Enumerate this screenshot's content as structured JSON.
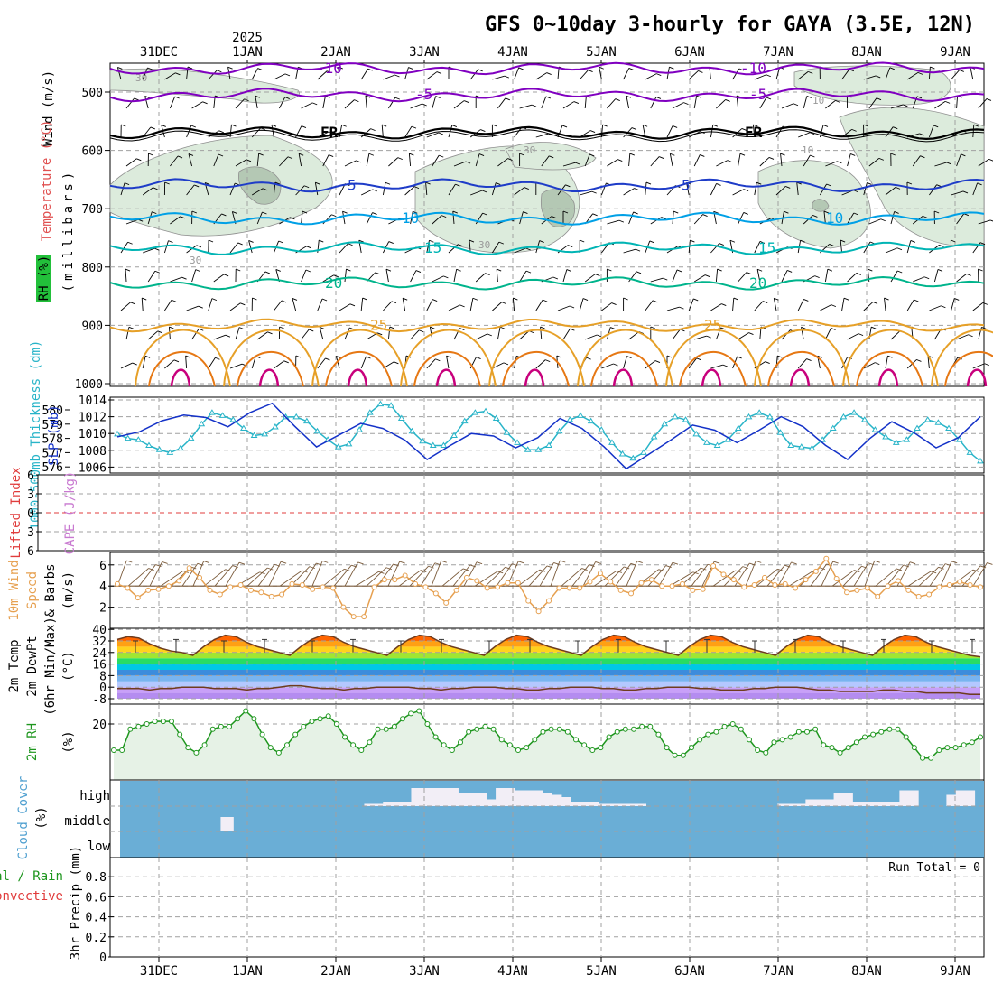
{
  "title": "GFS 0~10day 3-hourly for GAYA (3.5E, 12N)",
  "year_label": "2025",
  "dates": [
    "31DEC",
    "1JAN",
    "2JAN",
    "3JAN",
    "4JAN",
    "5JAN",
    "6JAN",
    "7JAN",
    "8JAN",
    "9JAN"
  ],
  "colors": {
    "grid": "#a0a0a0",
    "rh_fill_light": "#dcebdc",
    "rh_fill_dark": "#b4c8b4",
    "isotherm_purple": "#8000c0",
    "isotherm_black": "#000000",
    "isotherm_blue": "#1e3cc8",
    "isotherm_cyan": "#00a0e6",
    "isotherm_teal": "#00b4b4",
    "isotherm_green": "#00b48c",
    "isotherm_orange": "#e6a028",
    "isotherm_darkorange": "#e67814",
    "isotherm_magenta": "#c8007c",
    "slp": "#1432c8",
    "thickness": "#28b4c8",
    "lifted_zero": "#e03c3c",
    "wind_speed": "#e6a050",
    "wind_barb": "#7a5a3a",
    "rh2m_line": "#1e961e",
    "rh2m_fill": "#e6f2e6",
    "cloud_bg": "#6aaed6",
    "cloud_fill": "#f2eef6"
  },
  "labels": {
    "panel1": {
      "wind": "Wind (m/s)",
      "temperature": "Temperature (°C)",
      "rh": "RH (%)",
      "millibars": "(millibars)"
    },
    "panel2": {
      "thickness": "1000-500mb Thickness (dm)",
      "slp": "SLP (mb)"
    },
    "panel3": {
      "lifted": "Lifted Index",
      "cape": "CAPE (J/kg)"
    },
    "panel4": {
      "wind": "10m Wind",
      "speed": "Speed",
      "barbs": "& Barbs",
      "units": "(m/s)"
    },
    "panel5": {
      "temp": "2m Temp",
      "dewpt": "2m DewPt",
      "minmax": "(6hr Min/Max)",
      "units": "(°C)"
    },
    "panel6": {
      "rh": "2m RH",
      "units": "(%)"
    },
    "panel7": {
      "cloud": "Cloud Cover",
      "units": "(%)",
      "high": "high",
      "middle": "middle",
      "low": "low"
    },
    "panel8": {
      "total": "Total / Rain",
      "convective": "Convective",
      "precip": "3hr Precip (mm)",
      "run_total": "Run Total = 0"
    }
  },
  "chart_data": [
    {
      "panel": "upper-air cross-section",
      "type": "heatmap",
      "y_ticks": [
        500,
        600,
        700,
        800,
        900,
        1000
      ],
      "isotherms": [
        {
          "label": "-10",
          "color": "purple",
          "approx_mb": 465
        },
        {
          "label": "-5",
          "color": "purple",
          "approx_mb": 505
        },
        {
          "label": "FR",
          "color": "black",
          "approx_mb": 570
        },
        {
          "label": "5",
          "color": "blue",
          "approx_mb": 660
        },
        {
          "label": "10",
          "color": "cyan",
          "approx_mb": 717
        },
        {
          "label": "15",
          "color": "teal",
          "approx_mb": 768
        },
        {
          "label": "20",
          "color": "green",
          "approx_mb": 828
        },
        {
          "label": "25",
          "color": "orange",
          "approx_mb": 900
        }
      ],
      "rh_contour_labels": [
        "30",
        "30",
        "30",
        "30",
        "10",
        "10"
      ]
    },
    {
      "panel": "slp-thickness",
      "type": "line",
      "slp_ticks": [
        1006,
        1008,
        1010,
        1012,
        1014
      ],
      "thickness_ticks": [
        576,
        577,
        578,
        579,
        580
      ],
      "slp": [
        1009.6,
        1010.2,
        1011.5,
        1012.2,
        1011.9,
        1010.8,
        1012.5,
        1013.6,
        1010.9,
        1008.4,
        1009.8,
        1011.2,
        1010.6,
        1009.2,
        1006.9,
        1008.5,
        1010.0,
        1009.7,
        1008.3,
        1009.5,
        1011.8,
        1010.6,
        1008.4,
        1005.8,
        1007.5,
        1009.2,
        1011.0,
        1010.4,
        1008.9,
        1010.4,
        1012.0,
        1010.8,
        1008.6,
        1006.9,
        1009.4,
        1011.4,
        1010.1,
        1008.3,
        1009.5,
        1012.0,
        1010.6,
        1008.2,
        1010.0,
        1012.6,
        1010.9,
        1009.2,
        1007.0,
        1009.3,
        1011.4,
        1010.2,
        1008.8,
        1009.9,
        1012.4,
        1010.7,
        1009.1,
        1006.3,
        1008.4,
        1011.0,
        1010.7,
        1008.5,
        1009.6,
        1011.5,
        1010.5,
        1009.5,
        1008.4,
        1010.7,
        1011.2,
        1009.0,
        1008.0,
        1010.6,
        1011.3,
        1010.2,
        1008.7,
        1010.2,
        1013.5,
        1011.2,
        1008.4,
        1007.6,
        1009.0,
        1010.3
      ],
      "thickness": [
        578.3,
        578.0,
        577.9,
        577.5,
        577.2,
        577.0,
        577.3,
        578.0,
        579.0,
        579.8,
        579.6,
        579.3,
        578.7,
        578.2,
        578.3,
        578.8,
        579.5,
        579.5,
        579.2,
        578.5,
        577.9,
        577.4,
        577.6,
        578.6,
        579.8,
        580.4,
        580.3,
        579.4,
        578.5,
        577.8,
        577.5,
        577.5,
        578.2,
        579.2,
        579.8,
        579.9,
        579.4,
        578.4,
        577.7,
        577.2,
        577.2,
        577.5,
        578.5,
        579.3,
        579.6,
        579.2,
        578.6,
        577.7,
        576.9,
        576.6,
        577.0,
        578.1,
        579.0,
        579.5,
        579.3,
        578.3,
        577.7,
        577.5,
        577.9,
        578.7,
        579.5,
        579.8,
        579.5,
        578.4,
        577.5,
        577.4,
        577.3,
        577.9,
        578.7,
        579.5,
        579.8,
        579.3,
        578.6,
        578.1,
        577.7,
        577.9,
        578.7,
        579.3,
        579.1,
        578.7,
        577.9,
        577.0,
        576.4
      ]
    },
    {
      "panel": "lifted-cape",
      "type": "line",
      "y_ticks": [
        "6",
        "3",
        "0",
        "3",
        "6"
      ],
      "zero_line": 0
    },
    {
      "panel": "10m wind",
      "type": "line",
      "y_ticks": [
        2,
        4,
        6
      ],
      "speed": [
        4.2,
        3.8,
        2.9,
        3.6,
        3.7,
        4.0,
        4.5,
        5.7,
        4.8,
        3.6,
        3.2,
        3.9,
        4.1,
        3.6,
        3.4,
        3.0,
        3.2,
        4.2,
        4.1,
        3.7,
        3.9,
        3.8,
        2.0,
        1.1,
        1.1,
        3.9,
        4.6,
        4.6,
        5.0,
        4.2,
        3.9,
        3.3,
        2.4,
        3.6,
        4.8,
        4.5,
        3.8,
        3.9,
        4.3,
        4.3,
        2.6,
        1.6,
        2.6,
        3.8,
        3.8,
        3.8,
        4.4,
        5.2,
        4.4,
        3.6,
        3.3,
        4.3,
        4.6,
        4.0,
        4.0,
        4.2,
        3.6,
        3.7,
        5.9,
        5.1,
        4.6,
        3.9,
        4.1,
        4.8,
        4.1,
        4.2,
        3.8,
        4.6,
        5.4,
        6.6,
        4.7,
        3.4,
        3.6,
        3.8,
        3.0,
        4.0,
        4.5,
        3.6,
        3.0,
        3.2,
        3.9,
        4.1,
        4.4,
        4.1,
        3.9
      ]
    },
    {
      "panel": "2m temp",
      "type": "area",
      "y_ticks": [
        "-8",
        "0",
        "8",
        "16",
        "24",
        "32",
        "40"
      ],
      "temp": [
        33,
        35,
        34,
        30,
        27,
        25,
        24,
        22,
        28,
        33,
        36,
        35,
        31,
        28,
        26,
        24,
        22,
        28,
        33,
        36,
        35,
        31,
        28,
        26,
        24,
        22,
        28,
        33,
        36,
        35,
        31,
        28,
        26,
        24,
        22,
        28,
        33,
        36,
        35,
        31,
        28,
        26,
        24,
        22,
        28,
        33,
        36,
        35,
        31,
        28,
        26,
        24,
        22,
        28,
        33,
        36,
        35,
        31,
        28,
        26,
        24,
        22,
        28,
        33,
        36,
        35,
        31,
        28,
        26,
        24,
        22,
        28,
        33,
        36,
        35,
        31,
        28,
        26,
        24,
        22,
        21
      ],
      "dewpt": [
        -1,
        -1,
        -1,
        -2,
        -1,
        -1,
        0,
        0,
        0,
        -1,
        -1,
        -1,
        -2,
        -1,
        -1,
        0,
        1,
        1,
        0,
        -1,
        -1,
        -2,
        -1,
        -1,
        0,
        0,
        0,
        0,
        -1,
        -1,
        -2,
        -1,
        -1,
        0,
        0,
        0,
        -1,
        -1,
        -2,
        -2,
        -1,
        -1,
        0,
        0,
        0,
        -1,
        -1,
        -2,
        -2,
        -1,
        -1,
        0,
        0,
        0,
        -1,
        -1,
        -2,
        -2,
        -2,
        -1,
        -1,
        0,
        0,
        0,
        -1,
        -2,
        -2,
        -3,
        -3,
        -3,
        -3,
        -2,
        -2,
        -3,
        -3,
        -4,
        -4,
        -4,
        -4,
        -5,
        -5
      ]
    },
    {
      "panel": "2m RH",
      "type": "area",
      "y_ticks": [
        20
      ],
      "rh": [
        10,
        10,
        18,
        19,
        20,
        21,
        21,
        21,
        16,
        11,
        9,
        12,
        18,
        19,
        19,
        22,
        25,
        22,
        16,
        11,
        9,
        12,
        16,
        19,
        21,
        22,
        23,
        20,
        15,
        12,
        10,
        13,
        18,
        18,
        19,
        22,
        24,
        25,
        20,
        15,
        12,
        10,
        13,
        17,
        18,
        19,
        18,
        14,
        12,
        10,
        11,
        14,
        17,
        18,
        18,
        17,
        14,
        12,
        10,
        11,
        15,
        17,
        18,
        18,
        19,
        19,
        16,
        11,
        8,
        8,
        11,
        14,
        16,
        17,
        19,
        20,
        18,
        14,
        10,
        9,
        13,
        14,
        15,
        17,
        17,
        18,
        12,
        11,
        9,
        11,
        13,
        15,
        16,
        17,
        18,
        18,
        15,
        11,
        7,
        7,
        10,
        11,
        11,
        12,
        13,
        15
      ]
    },
    {
      "panel": "cloud cover",
      "type": "bar",
      "levels": [
        "high",
        "middle",
        "low"
      ],
      "high_cover_percent": [
        0,
        0,
        0,
        0,
        0,
        0,
        0,
        0,
        0,
        0,
        0,
        0,
        0,
        0,
        0,
        0,
        0,
        0,
        0,
        0,
        0,
        0,
        0,
        0,
        0,
        0,
        10,
        10,
        20,
        20,
        20,
        80,
        80,
        80,
        80,
        80,
        60,
        60,
        60,
        30,
        80,
        80,
        70,
        70,
        70,
        60,
        50,
        40,
        20,
        20,
        20,
        10,
        10,
        10,
        10,
        10,
        0,
        0,
        0,
        0,
        0,
        0,
        0,
        0,
        0,
        0,
        0,
        0,
        0,
        0,
        10,
        10,
        10,
        30,
        30,
        30,
        60,
        60,
        20,
        20,
        20,
        20,
        20,
        70,
        70,
        0,
        0,
        0,
        50,
        70,
        70,
        0
      ],
      "middle_cover_percent": [
        0,
        0,
        0,
        0,
        0,
        0,
        0,
        0,
        0,
        0,
        0,
        60,
        0,
        0,
        0,
        0,
        0,
        0,
        0,
        0,
        0,
        0,
        0,
        0,
        0,
        0,
        0,
        0,
        0,
        0,
        0,
        0,
        0,
        0,
        0,
        0,
        0,
        0,
        0,
        0,
        0,
        0,
        0,
        0,
        0,
        0,
        0,
        0,
        0,
        0,
        0,
        0,
        0,
        0,
        0,
        0,
        0,
        0,
        0,
        0,
        0,
        0,
        0,
        0,
        0,
        0,
        0,
        0,
        0,
        0,
        0,
        0,
        0,
        0,
        0,
        0,
        0,
        0,
        0,
        0,
        0,
        0,
        0,
        0,
        0,
        0,
        0,
        0,
        0,
        0,
        0,
        0
      ],
      "low_cover_percent": 0
    },
    {
      "panel": "3hr precip",
      "type": "bar",
      "y_ticks": [
        0,
        0.2,
        0.4,
        0.6,
        0.8
      ],
      "values": [
        0,
        0,
        0,
        0,
        0,
        0,
        0,
        0,
        0,
        0,
        0,
        0,
        0,
        0,
        0,
        0,
        0,
        0,
        0,
        0,
        0,
        0,
        0,
        0,
        0,
        0,
        0,
        0,
        0,
        0,
        0,
        0,
        0,
        0,
        0,
        0,
        0,
        0,
        0,
        0,
        0,
        0,
        0,
        0,
        0,
        0,
        0,
        0,
        0,
        0,
        0,
        0,
        0,
        0,
        0,
        0,
        0,
        0,
        0,
        0,
        0,
        0,
        0,
        0,
        0,
        0,
        0,
        0,
        0,
        0,
        0,
        0,
        0,
        0,
        0,
        0,
        0,
        0,
        0,
        0,
        0,
        0
      ]
    }
  ]
}
